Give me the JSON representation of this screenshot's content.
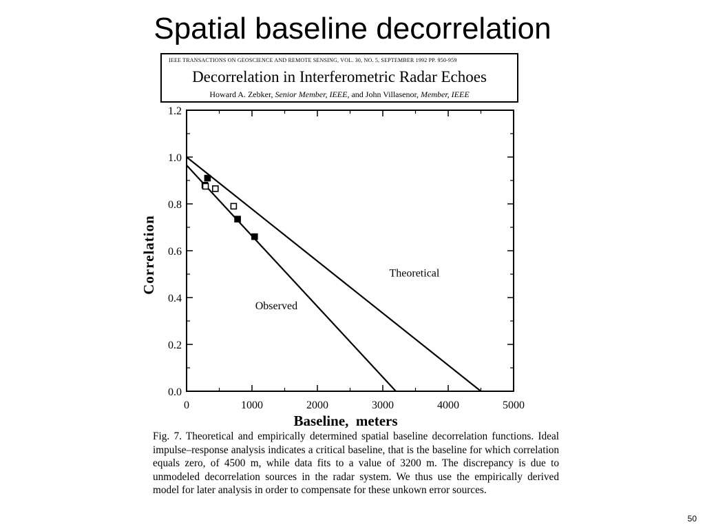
{
  "slide": {
    "title": "Spatial baseline decorrelation",
    "page_number": "50"
  },
  "paper_header": {
    "journal": "IEEE TRANSACTIONS ON GEOSCIENCE AND REMOTE SENSING, VOL. 30, NO. 5, SEPTEMBER 1992  PP. 950-959",
    "title": "Decorrelation in Interferometric Radar Echoes",
    "author1": "Howard A. Zebker,",
    "author1_role": "Senior Member, IEEE,",
    "and": "and John Villasenor,",
    "author2_role": "Member, IEEE"
  },
  "caption": "Fig. 7.    Theoretical and empirically determined spatial baseline decorrelation functions. Ideal impulse–response analysis indicates a critical baseline, that is the baseline for which correlation equals zero, of 4500 m, while data fits to a value of 3200 m. The discrepancy is due to unmodeled decorrelation sources in the radar system. We thus use the empirically derived model for later analysis in order to compensate for these unkown error sources.",
  "chart_data": {
    "type": "line",
    "title": "",
    "xlabel": "Baseline,  meters",
    "ylabel": "Correlation",
    "xlim": [
      0,
      5000
    ],
    "ylim": [
      0,
      1.2
    ],
    "x_ticks": [
      0,
      1000,
      2000,
      3000,
      4000,
      5000
    ],
    "x_tick_labels": [
      "0",
      "1000",
      "2000",
      "3000",
      "4000",
      "5000"
    ],
    "y_ticks": [
      0,
      0.2,
      0.4,
      0.6,
      0.8,
      1.0,
      1.2
    ],
    "y_tick_labels": [
      "0.0",
      "0.2",
      "0.4",
      "0.6",
      "0.8",
      "1.0",
      "1.2"
    ],
    "grid": false,
    "legend": "none",
    "series": [
      {
        "name": "Theoretical",
        "type": "line",
        "x": [
          0,
          4500
        ],
        "y": [
          1.0,
          0.0
        ]
      },
      {
        "name": "Observed",
        "type": "line",
        "x": [
          0,
          3200
        ],
        "y": [
          0.965,
          0.0
        ]
      },
      {
        "type": "scatter",
        "marker": "filled-square",
        "x": [
          280,
          320,
          780,
          1040
        ],
        "y": [
          0.88,
          0.91,
          0.735,
          0.66
        ]
      },
      {
        "type": "scatter",
        "marker": "open-square",
        "x": [
          290,
          440,
          720
        ],
        "y": [
          0.875,
          0.865,
          0.79
        ]
      }
    ],
    "annotations": [
      {
        "text": "Theoretical",
        "x": 3100,
        "y": 0.49
      },
      {
        "text": "Observed",
        "x": 1050,
        "y": 0.35
      }
    ]
  }
}
